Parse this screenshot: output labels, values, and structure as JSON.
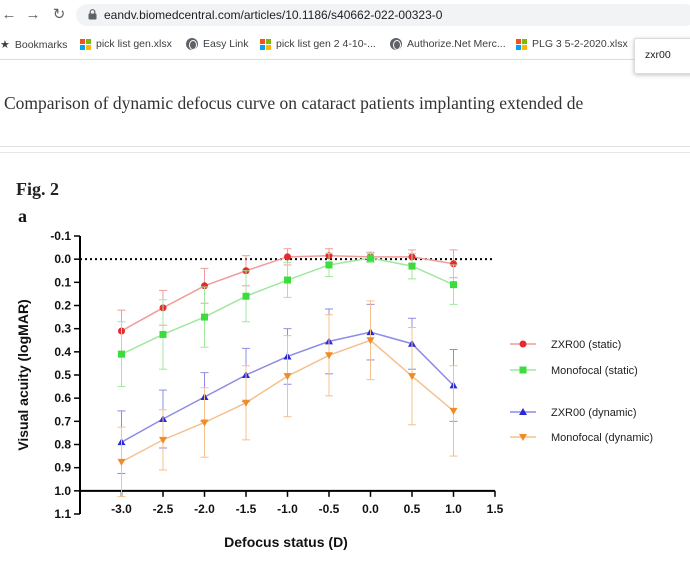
{
  "browser": {
    "url": "eandv.biomedcentral.com/articles/10.1186/s40662-022-00323-0",
    "nav": {
      "back_icon": "arrow-left-icon",
      "forward_icon": "arrow-right-icon",
      "reload_icon": "reload-icon"
    },
    "bookmarks": [
      {
        "label": "Bookmarks",
        "icon": "star-icon"
      },
      {
        "label": "pick list gen.xlsx",
        "icon": "microsoft-icon"
      },
      {
        "label": "Easy Link",
        "icon": "globe-icon"
      },
      {
        "label": "pick list gen 2 4-10-...",
        "icon": "microsoft-icon"
      },
      {
        "label": "Authorize.Net Merc...",
        "icon": "globe-icon"
      },
      {
        "label": "PLG 3 5-2-2020.xlsx",
        "icon": "microsoft-icon"
      }
    ],
    "search_popup_text": "zxr00"
  },
  "article": {
    "title": "Comparison of dynamic defocus curve on cataract patients implanting extended de"
  },
  "figure": {
    "label": "Fig. 2",
    "panel": "a"
  },
  "colors": {
    "zxr_static": "#e8282b",
    "mono_static": "#3ddc3d",
    "zxr_dynamic": "#2a2ad4",
    "mono_dynamic": "#f08c28",
    "zxr_static_line": "#ef9c9c",
    "mono_static_line": "#9fe89f",
    "zxr_dynamic_line": "#8c8ce6",
    "mono_dynamic_line": "#f5c08f"
  },
  "chart_data": {
    "type": "line",
    "xlabel": "Defocus status (D)",
    "ylabel": "Visual acuity (logMAR)",
    "xlim": [
      -3.5,
      1.5
    ],
    "ylim": [
      -0.1,
      1.1
    ],
    "y_inverted": true,
    "xticks": [
      "-3.0",
      "-2.5",
      "-2.0",
      "-1.5",
      "-1.0",
      "-0.5",
      "0.0",
      "0.5",
      "1.0",
      "1.5"
    ],
    "yticks": [
      "-0.1",
      "0.0",
      "0.1",
      "0.2",
      "0.3",
      "0.4",
      "0.5",
      "0.6",
      "0.7",
      "0.8",
      "0.9",
      "1.0",
      "1.1"
    ],
    "reference_line": 0.0,
    "x": [
      -3.0,
      -2.5,
      -2.0,
      -1.5,
      -1.0,
      -0.5,
      0.0,
      0.5,
      1.0
    ],
    "legend_position": "right",
    "series": [
      {
        "name": "ZXR00 (static)",
        "marker": "circle",
        "values": [
          0.31,
          0.21,
          0.115,
          0.05,
          -0.01,
          -0.015,
          -0.01,
          -0.01,
          0.02
        ],
        "errors": [
          0.09,
          0.075,
          0.075,
          0.065,
          0.035,
          0.03,
          0.02,
          0.03,
          0.06
        ]
      },
      {
        "name": "Monofocal (static)",
        "marker": "square",
        "values": [
          0.41,
          0.325,
          0.25,
          0.16,
          0.09,
          0.025,
          -0.005,
          0.03,
          0.11
        ],
        "errors": [
          0.14,
          0.15,
          0.13,
          0.11,
          0.075,
          0.05,
          0.02,
          0.055,
          0.085
        ]
      },
      {
        "name": "ZXR00 (dynamic)",
        "marker": "triangle-up",
        "values": [
          0.79,
          0.69,
          0.595,
          0.5,
          0.42,
          0.355,
          0.315,
          0.365,
          0.545
        ],
        "errors": [
          0.135,
          0.125,
          0.105,
          0.115,
          0.12,
          0.14,
          0.12,
          0.11,
          0.155
        ]
      },
      {
        "name": "Monofocal (dynamic)",
        "marker": "triangle-down",
        "values": [
          0.875,
          0.78,
          0.705,
          0.62,
          0.505,
          0.415,
          0.35,
          0.505,
          0.655
        ],
        "errors": [
          0.15,
          0.13,
          0.15,
          0.16,
          0.175,
          0.175,
          0.17,
          0.21,
          0.195
        ]
      }
    ]
  }
}
